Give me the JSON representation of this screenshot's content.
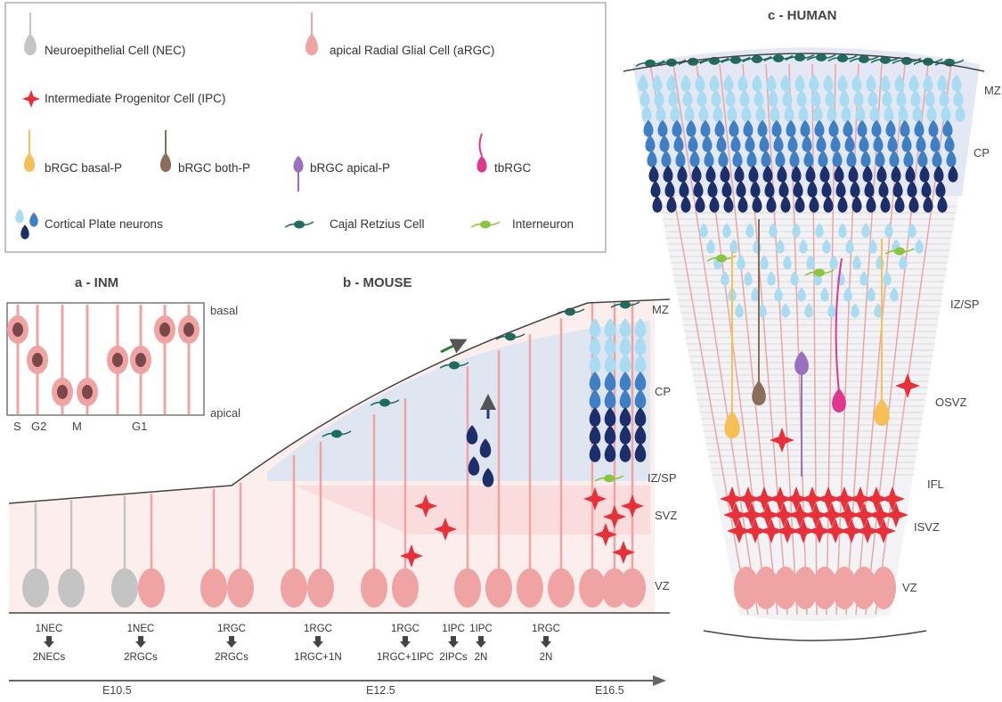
{
  "legend": {
    "nec": "Neuroepithelial Cell (NEC)",
    "argc": "apical Radial Glial Cell (aRGC)",
    "ipc": "Intermediate Progenitor Cell (IPC)",
    "bbasal": "bRGC basal-P",
    "bboth": "bRGC both-P",
    "bapical": "bRGC apical-P",
    "tbrgc": "tbRGC",
    "cpn": "Cortical Plate neurons",
    "cajal": "Cajal Retzius Cell",
    "inter": "Interneuron"
  },
  "titles": {
    "inm": "a - INM",
    "mouse": "b - MOUSE",
    "human": "c - HUMAN"
  },
  "inm": {
    "basal": "basal",
    "apical": "apical",
    "phases": [
      "S",
      "G2",
      "M",
      "G1"
    ]
  },
  "mouse_zones": [
    "MZ",
    "CP",
    "IZ/SP",
    "SVZ",
    "VZ"
  ],
  "human_zones": [
    "MZ",
    "CP",
    "IZ/SP",
    "OSVZ",
    "IFL",
    "ISVZ",
    "VZ"
  ],
  "divisions": [
    {
      "top": "1NEC",
      "bottom": "2NECs"
    },
    {
      "top": "1NEC",
      "bottom": "2RGCs"
    },
    {
      "top": "1RGC",
      "bottom": "2RGCs"
    },
    {
      "top": "1RGC",
      "bottom": "1RGC+1N"
    },
    {
      "top": "1RGC",
      "bottom": "1RGC+1IPC"
    },
    {
      "top": "1IPC",
      "bottom": "2IPCs"
    },
    {
      "top": "1IPC",
      "bottom": "2N"
    },
    {
      "top": "1RGC",
      "bottom": "2N"
    }
  ],
  "timeline": [
    "E10.5",
    "E12.5",
    "E16.5"
  ],
  "colors": {
    "nec": "#c4c4c4",
    "argc": "#f0a3a3",
    "ipc": "#e8303a",
    "bbasal": "#f6c056",
    "bboth": "#8b6e5a",
    "bapical": "#9a6fbd",
    "tbrgc": "#e0368b",
    "cajal": "#1f6b5e",
    "inter": "#8bc53f",
    "cp_light": "#a9dcf0",
    "cp_mid": "#3f7fc4",
    "cp_dark": "#1d2f6b"
  }
}
